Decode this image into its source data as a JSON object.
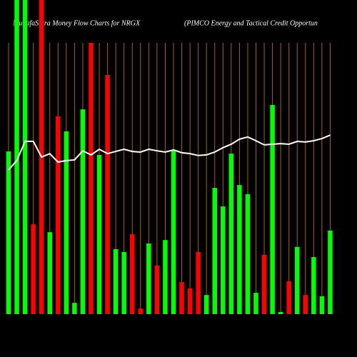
{
  "chart_data": {
    "type": "bar-line",
    "title": "MunafaSutra  Money Flow  Charts for NRGX",
    "subtitle": "(PIMCO Energy and Tactical Credit Opportun",
    "categories": [
      null,
      null,
      null,
      null,
      null,
      null,
      null,
      null,
      null,
      null,
      null,
      null,
      null,
      null,
      null,
      null,
      null,
      null,
      null,
      null,
      null,
      null,
      null,
      null,
      null,
      null,
      null,
      null,
      null,
      null,
      null,
      null,
      null,
      null,
      null,
      null,
      null,
      null,
      null,
      null
    ],
    "values": [
      51.8,
      100,
      100,
      28.6,
      100,
      26.1,
      63,
      58.2,
      3.6,
      65.2,
      86.4,
      50.7,
      76.1,
      20.7,
      19.8,
      25.5,
      1.8,
      22.5,
      15.5,
      23.6,
      52.3,
      10.2,
      8.2,
      19.8,
      6.1,
      40.2,
      34.3,
      51.1,
      41.1,
      38.2,
      6.8,
      18.9,
      66.6,
      0.7,
      10.5,
      21.4,
      6.1,
      18.2,
      5.7,
      26.6
    ],
    "bar_colors": [
      "#00ff00",
      "#00ff00",
      "#00ff00",
      "#ff0000",
      "#ff0000",
      "#00ff00",
      "#ff0000",
      "#00ff00",
      "#00ff00",
      "#00ff00",
      "#ff0000",
      "#00ff00",
      "#ff0000",
      "#00ff00",
      "#00ff00",
      "#ff0000",
      "#ff0000",
      "#00ff00",
      "#ff0000",
      "#00ff00",
      "#00ff00",
      "#ff0000",
      "#ff0000",
      "#ff0000",
      "#00ff00",
      "#00ff00",
      "#00ff00",
      "#00ff00",
      "#00ff00",
      "#00ff00",
      "#00ff00",
      "#ff0000",
      "#00ff00",
      "#00ff00",
      "#ff0000",
      "#00ff00",
      "#ff0000",
      "#00ff00",
      "#00ff00",
      "#00ff00"
    ],
    "line_values": [
      45.9,
      48.9,
      55,
      55,
      50,
      51.1,
      48.4,
      48.9,
      49.1,
      52,
      50.7,
      52.5,
      51.1,
      51.8,
      52.5,
      51.8,
      51.6,
      52.5,
      52,
      51.6,
      52.3,
      51.4,
      51.1,
      50.5,
      50.7,
      51.6,
      53,
      54.1,
      55.7,
      56.4,
      55.2,
      53.9,
      54.1,
      54.3,
      54.1,
      55,
      54.8,
      55.2,
      55.9,
      57
    ],
    "line_color": "#ffffff",
    "ylim": [
      0,
      100
    ],
    "grid": true,
    "grid_color": "#b06000"
  }
}
